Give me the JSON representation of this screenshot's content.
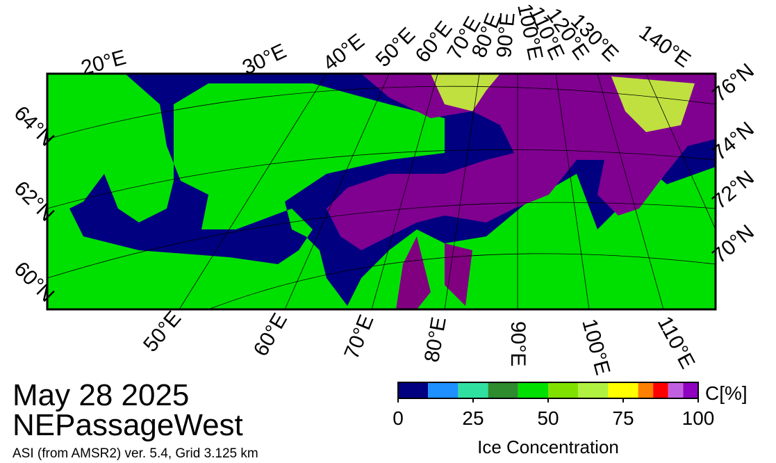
{
  "header": {
    "date": "May 28 2025",
    "region": "NEPassageWest",
    "source": "ASI (from AMSR2) ver. 5.4,  Grid 3.125 km"
  },
  "map": {
    "top_lon_labels": [
      "20°E",
      "30°E",
      "40°E",
      "50°E",
      "60°E",
      "70°E",
      "80°E",
      "90°E",
      "100°E",
      "110°E",
      "120°E",
      "130°E",
      "140°E"
    ],
    "bottom_lon_labels": [
      "50°E",
      "60°E",
      "70°E",
      "80°E",
      "90°E",
      "100°E",
      "110°E"
    ],
    "left_lat_labels": [
      "64°N",
      "62°N",
      "60°N"
    ],
    "right_lat_labels": [
      "76°N",
      "74°N",
      "72°N",
      "70°N"
    ]
  },
  "colorbar": {
    "unit": "C[%]",
    "label": "Ice Concentration",
    "range": [
      0,
      100
    ],
    "ticks": [
      0,
      25,
      50,
      75,
      100
    ],
    "bounds": [
      0,
      10,
      20,
      30,
      40,
      50,
      60,
      70,
      80,
      85,
      90,
      95,
      100
    ],
    "colors": [
      "#000080",
      "#1e90ff",
      "#30e0a0",
      "#2e8b2e",
      "#00e000",
      "#80e000",
      "#b0f040",
      "#ffff00",
      "#ff8000",
      "#ff0000",
      "#c060e0",
      "#9000c0"
    ]
  }
}
